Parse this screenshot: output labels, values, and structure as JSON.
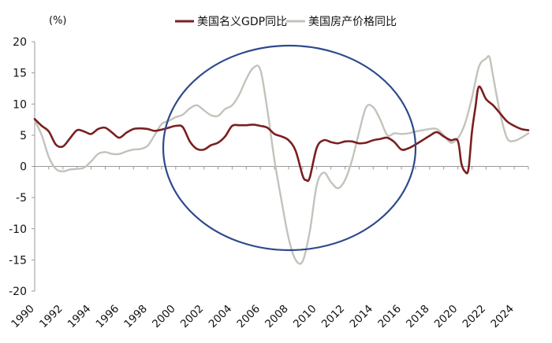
{
  "chart_data": {
    "type": "line",
    "title": "",
    "xlabel": "",
    "ylabel": "",
    "unit_label": "(%)",
    "ylim": [
      -20,
      20
    ],
    "xlim": [
      1990,
      2025
    ],
    "yticks": [
      "20",
      "15",
      "10",
      "5",
      "0",
      "-5",
      "-10",
      "-15",
      "-20"
    ],
    "xticks": [
      "1990",
      "1992",
      "1994",
      "1996",
      "1998",
      "2000",
      "2002",
      "2004",
      "2006",
      "2008",
      "2010",
      "2012",
      "2014",
      "2016",
      "2018",
      "2020",
      "2022",
      "2024"
    ],
    "grid": false,
    "legend_position": "top",
    "annotation": {
      "type": "ellipse",
      "color": "#2e4a8c"
    },
    "series": [
      {
        "name": "美国名义GDP同比",
        "color": "#7a1f1f",
        "x": [
          1990,
          1990.5,
          1991,
          1991.5,
          1992,
          1992.5,
          1993,
          1993.5,
          1994,
          1994.5,
          1995,
          1995.5,
          1996,
          1996.5,
          1997,
          1997.5,
          1998,
          1998.5,
          1999,
          1999.5,
          2000,
          2000.5,
          2001,
          2001.5,
          2002,
          2002.5,
          2003,
          2003.5,
          2004,
          2004.5,
          2005,
          2005.5,
          2006,
          2006.5,
          2007,
          2007.5,
          2008,
          2008.5,
          2009,
          2009.25,
          2009.5,
          2010,
          2010.5,
          2011,
          2011.5,
          2012,
          2012.5,
          2013,
          2013.5,
          2014,
          2014.5,
          2015,
          2015.5,
          2016,
          2016.5,
          2017,
          2017.5,
          2018,
          2018.5,
          2019,
          2019.5,
          2020,
          2020.25,
          2020.5,
          2020.75,
          2021,
          2021.25,
          2021.5,
          2022,
          2022.5,
          2023,
          2023.5,
          2024,
          2024.5,
          2025
        ],
        "values": [
          7.6,
          6.5,
          5.6,
          3.5,
          3.2,
          4.5,
          5.8,
          5.6,
          5.2,
          6.0,
          6.2,
          5.4,
          4.6,
          5.4,
          6.0,
          6.1,
          6.0,
          5.7,
          5.9,
          6.2,
          6.5,
          6.3,
          4.0,
          2.8,
          2.7,
          3.4,
          3.8,
          4.8,
          6.5,
          6.6,
          6.6,
          6.7,
          6.5,
          6.2,
          5.2,
          4.8,
          4.2,
          2.5,
          -1.5,
          -2.2,
          -1.8,
          3.0,
          4.2,
          3.9,
          3.7,
          4.0,
          4.0,
          3.7,
          3.8,
          4.2,
          4.4,
          4.6,
          3.9,
          2.7,
          2.9,
          3.5,
          4.2,
          4.9,
          5.5,
          4.8,
          4.2,
          4.1,
          0.5,
          -0.8,
          -0.5,
          5.5,
          9.5,
          12.8,
          10.8,
          9.8,
          8.5,
          7.2,
          6.5,
          6.0,
          5.8
        ]
      },
      {
        "name": "美国房产价格同比",
        "color": "#c3c3bc",
        "x": [
          1990,
          1990.5,
          1991,
          1991.5,
          1992,
          1992.5,
          1993,
          1993.5,
          1994,
          1994.5,
          1995,
          1995.5,
          1996,
          1996.5,
          1997,
          1997.5,
          1998,
          1998.5,
          1999,
          1999.5,
          2000,
          2000.5,
          2001,
          2001.5,
          2002,
          2002.5,
          2003,
          2003.5,
          2004,
          2004.5,
          2005,
          2005.5,
          2006,
          2006.5,
          2007,
          2007.5,
          2008,
          2008.5,
          2009,
          2009.5,
          2010,
          2010.5,
          2011,
          2011.5,
          2012,
          2012.5,
          2013,
          2013.5,
          2014,
          2014.5,
          2015,
          2015.5,
          2016,
          2016.5,
          2017,
          2017.5,
          2018,
          2018.5,
          2019,
          2019.5,
          2020,
          2020.5,
          2021,
          2021.5,
          2022,
          2022.25,
          2022.5,
          2023,
          2023.5,
          2024,
          2024.5,
          2025
        ],
        "values": [
          7.4,
          5.0,
          1.5,
          -0.4,
          -0.8,
          -0.5,
          -0.4,
          -0.2,
          0.8,
          2.0,
          2.3,
          2.0,
          2.0,
          2.4,
          2.7,
          2.8,
          3.3,
          5.0,
          6.8,
          7.3,
          7.9,
          8.3,
          9.3,
          9.8,
          9.0,
          8.2,
          8.1,
          9.2,
          9.8,
          11.5,
          14.0,
          15.8,
          15.5,
          9.0,
          1.0,
          -5.5,
          -11.5,
          -15.0,
          -15.2,
          -10.5,
          -3.0,
          -1.0,
          -2.5,
          -3.5,
          -2.2,
          1.0,
          5.5,
          9.5,
          9.5,
          7.5,
          5.0,
          5.3,
          5.2,
          5.3,
          5.6,
          5.8,
          6.0,
          6.0,
          5.0,
          3.8,
          4.5,
          6.8,
          11.0,
          16.0,
          17.3,
          17.5,
          14.5,
          8.5,
          4.5,
          4.1,
          4.6,
          5.3
        ]
      }
    ]
  }
}
